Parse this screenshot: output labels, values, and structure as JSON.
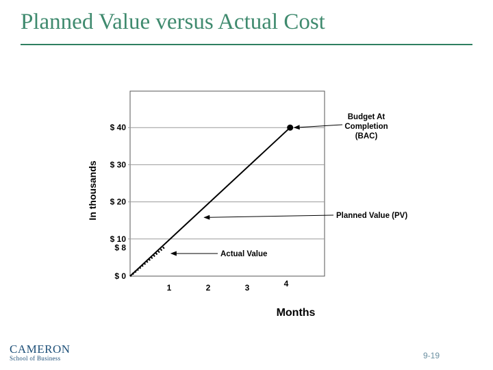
{
  "slide": {
    "title": "Planned Value versus Actual Cost",
    "logo_name": "CAMERON",
    "logo_subtitle": "School of Business",
    "slide_number": "9-19"
  },
  "chart_data": {
    "type": "line",
    "title": "",
    "xlabel": "Months",
    "ylabel": "In thousands",
    "xlim": [
      0,
      5
    ],
    "ylim": [
      0,
      45
    ],
    "x_ticks": [
      {
        "value": 1,
        "label": "1"
      },
      {
        "value": 2,
        "label": "2"
      },
      {
        "value": 3,
        "label": "3"
      },
      {
        "value": 4,
        "label": "4"
      }
    ],
    "y_ticks": [
      {
        "value": 0,
        "label": "$ 0"
      },
      {
        "value": 8,
        "label": "$ 8"
      },
      {
        "value": 10,
        "label": "$ 10"
      },
      {
        "value": 20,
        "label": "$ 20"
      },
      {
        "value": 30,
        "label": "$ 30"
      },
      {
        "value": 40,
        "label": "$ 40"
      }
    ],
    "gridlines_y": [
      10,
      20,
      30,
      40
    ],
    "series": [
      {
        "name": "Planned Value (PV)",
        "style": "solid",
        "x": [
          0,
          4.1
        ],
        "y": [
          0,
          40
        ]
      },
      {
        "name": "Actual Value",
        "style": "dotted",
        "x": [
          0,
          0.9
        ],
        "y": [
          0,
          8
        ]
      }
    ],
    "marker": {
      "x": 4.1,
      "y": 40
    },
    "annotations": [
      {
        "lines": [
          "Budget At",
          "Completion",
          "(BAC)"
        ],
        "point_x": 4.1,
        "point_y": 40
      },
      {
        "lines": [
          "Planned Value (PV)"
        ],
        "point_x": 1.9,
        "point_y": 15.8
      },
      {
        "lines": [
          "Actual Value"
        ],
        "point_x": 1.05,
        "point_y": 6.1
      }
    ],
    "colors": {
      "axis": "#555555",
      "grid": "#999999",
      "line": "#000000",
      "title": "#3f8a6e"
    }
  }
}
